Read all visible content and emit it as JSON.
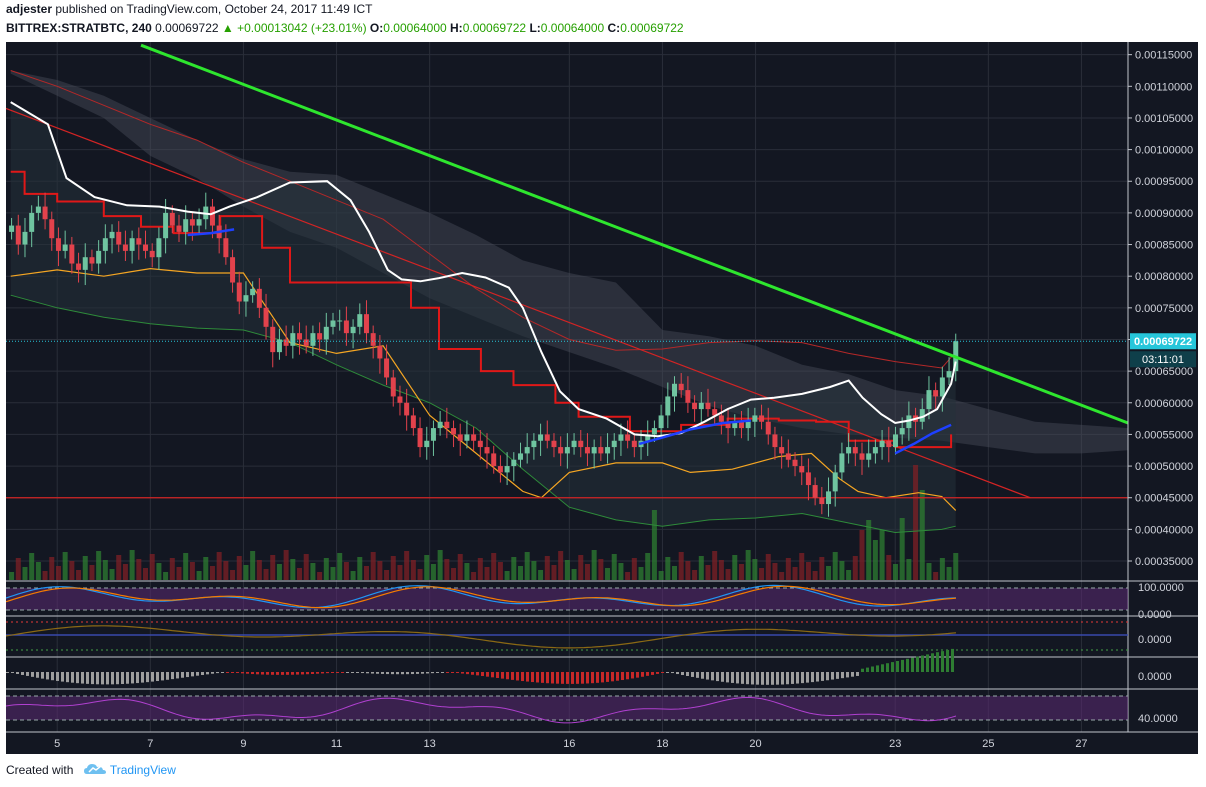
{
  "header": {
    "author": "adjester",
    "published_text": "published on TradingView.com, October 24, 2017 11:49 ICT",
    "symbol": "BITTREX:STRATBTC, 240",
    "last": "0.00069722",
    "change": "+0.00013042 (+23.01%)",
    "o_label": "O:",
    "o_value": "0.00064000",
    "h_label": "H:",
    "h_value": "0.00069722",
    "l_label": "L:",
    "l_value": "0.00064000",
    "c_label": "C:",
    "c_value": "0.00069722"
  },
  "footer": {
    "created_with": "Created with",
    "brand": "TradingView"
  },
  "colors": {
    "background": "#131722",
    "up": "#6fc4a0",
    "down": "#e2424c",
    "trend_green": "#2ee62e",
    "trend_red": "#d32424",
    "white_ma": "#ffffff",
    "blue_ma": "#1e40ff",
    "bollinger": "#f5a623",
    "price_tag": "#26c6da"
  },
  "chart_data": {
    "type": "candlestick",
    "symbol": "BITTREX:STRATBTC",
    "interval": "240",
    "price_axis_ticks": [
      "0.00115000",
      "0.00110000",
      "0.00105000",
      "0.00100000",
      "0.00095000",
      "0.00090000",
      "0.00085000",
      "0.00080000",
      "0.00075000",
      "0.00070000",
      "0.00065000",
      "0.00060000",
      "0.00055000",
      "0.00050000",
      "0.00045000",
      "0.00040000",
      "0.00035000"
    ],
    "price_range": [
      0.00032,
      0.00117
    ],
    "last_price_label": "0.00069722",
    "countdown_label": "03:11:01",
    "x_axis_ticks": [
      {
        "label": "5",
        "day": 5
      },
      {
        "label": "7",
        "day": 7
      },
      {
        "label": "9",
        "day": 9
      },
      {
        "label": "11",
        "day": 11
      },
      {
        "label": "13",
        "day": 13
      },
      {
        "label": "16",
        "day": 16
      },
      {
        "label": "18",
        "day": 18
      },
      {
        "label": "20",
        "day": 20
      },
      {
        "label": "23",
        "day": 23
      },
      {
        "label": "25",
        "day": 25
      },
      {
        "label": "27",
        "day": 27
      }
    ],
    "day_range": [
      3.9,
      28.0
    ],
    "candles_close": [
      0.00088,
      0.00085,
      0.00087,
      0.0009,
      0.00091,
      0.00089,
      0.00086,
      0.00084,
      0.00085,
      0.00082,
      0.00081,
      0.00083,
      0.00082,
      0.00084,
      0.00086,
      0.00087,
      0.00085,
      0.00084,
      0.00086,
      0.00085,
      0.00084,
      0.00083,
      0.00086,
      0.0009,
      0.00088,
      0.00087,
      0.00089,
      0.00088,
      0.00089,
      0.00091,
      0.00088,
      0.00086,
      0.00083,
      0.00079,
      0.00076,
      0.00077,
      0.00078,
      0.00075,
      0.00072,
      0.00068,
      0.0007,
      0.00069,
      0.00071,
      0.0007,
      0.00069,
      0.00071,
      0.0007,
      0.00072,
      0.00073,
      0.00073,
      0.00071,
      0.00072,
      0.00074,
      0.00071,
      0.00069,
      0.00067,
      0.00064,
      0.00061,
      0.0006,
      0.00058,
      0.00056,
      0.00053,
      0.00054,
      0.00056,
      0.00057,
      0.00056,
      0.00055,
      0.00054,
      0.00055,
      0.00054,
      0.00053,
      0.00052,
      0.0005,
      0.00049,
      0.0005,
      0.00051,
      0.00052,
      0.00053,
      0.00054,
      0.00055,
      0.00054,
      0.00053,
      0.00052,
      0.00053,
      0.00054,
      0.00053,
      0.00052,
      0.00053,
      0.00052,
      0.00053,
      0.00054,
      0.00055,
      0.00054,
      0.00053,
      0.00054,
      0.00055,
      0.00056,
      0.00058,
      0.00061,
      0.00063,
      0.00062,
      0.0006,
      0.00059,
      0.0006,
      0.00059,
      0.00058,
      0.00057,
      0.00056,
      0.00057,
      0.00056,
      0.00057,
      0.00058,
      0.00057,
      0.00055,
      0.00053,
      0.00052,
      0.00051,
      0.0005,
      0.00049,
      0.00047,
      0.00045,
      0.00044,
      0.00046,
      0.00049,
      0.00052,
      0.00053,
      0.00052,
      0.00051,
      0.00052,
      0.00053,
      0.00054,
      0.00053,
      0.00055,
      0.00056,
      0.00058,
      0.00057,
      0.00059,
      0.00062,
      0.00061,
      0.00064,
      0.00065,
      0.00069722
    ],
    "trendline_green": {
      "from": {
        "day": 6.8,
        "price": 0.001165
      },
      "to": {
        "day": 28.0,
        "price": 0.000568
      }
    },
    "trendline_red": {
      "from": {
        "day": 3.9,
        "price": 0.001065
      },
      "to": {
        "day": 25.9,
        "price": 0.00045
      }
    },
    "support_line": {
      "price": 0.00045
    },
    "white_ma": [
      [
        4.0,
        0.001075
      ],
      [
        4.8,
        0.00104
      ],
      [
        5.2,
        0.000955
      ],
      [
        5.8,
        0.000925
      ],
      [
        6.5,
        0.000912
      ],
      [
        7.2,
        0.00091
      ],
      [
        7.8,
        0.000902
      ],
      [
        8.3,
        0.000898
      ],
      [
        8.7,
        0.00091
      ],
      [
        9.3,
        0.000925
      ],
      [
        10.0,
        0.000948
      ],
      [
        10.8,
        0.00095
      ],
      [
        11.3,
        0.00092
      ],
      [
        11.7,
        0.00087
      ],
      [
        12.1,
        0.00081
      ],
      [
        12.4,
        0.000795
      ],
      [
        12.8,
        0.000792
      ],
      [
        13.2,
        0.000797
      ],
      [
        13.7,
        0.000805
      ],
      [
        14.2,
        0.000798
      ],
      [
        14.7,
        0.000782
      ],
      [
        15.0,
        0.00075
      ],
      [
        15.4,
        0.00068
      ],
      [
        15.8,
        0.000618
      ],
      [
        16.2,
        0.00059
      ],
      [
        16.8,
        0.000575
      ],
      [
        17.4,
        0.00055
      ],
      [
        17.9,
        0.000547
      ],
      [
        18.4,
        0.000552
      ],
      [
        18.9,
        0.00057
      ],
      [
        19.4,
        0.00059
      ],
      [
        19.9,
        0.000605
      ],
      [
        20.4,
        0.000608
      ],
      [
        21.0,
        0.000614
      ],
      [
        21.6,
        0.000625
      ],
      [
        22.0,
        0.000635
      ],
      [
        22.3,
        0.000608
      ],
      [
        22.7,
        0.000582
      ],
      [
        23.0,
        0.000568
      ],
      [
        23.3,
        0.000572
      ],
      [
        23.6,
        0.000578
      ],
      [
        23.9,
        0.00059
      ],
      [
        24.2,
        0.00063
      ],
      [
        24.3,
        0.000665
      ]
    ],
    "blue_ma": [
      [
        7.8,
        0.000865
      ],
      [
        8.3,
        0.000868
      ],
      [
        8.8,
        0.000874
      ],
      [
        17.5,
        0.000535
      ],
      [
        18.0,
        0.000545
      ],
      [
        18.6,
        0.000558
      ],
      [
        19.3,
        0.000568
      ],
      [
        19.9,
        0.000572
      ],
      [
        23.0,
        0.00052
      ],
      [
        23.4,
        0.000535
      ],
      [
        23.8,
        0.000552
      ],
      [
        24.2,
        0.000565
      ]
    ],
    "red_step": [
      [
        4.0,
        0.000965
      ],
      [
        4.3,
        0.00093
      ],
      [
        5.0,
        0.000918
      ],
      [
        6.0,
        0.000895
      ],
      [
        6.8,
        0.000878
      ],
      [
        7.5,
        0.000868
      ],
      [
        8.5,
        0.000895
      ],
      [
        9.4,
        0.000845
      ],
      [
        10.0,
        0.00079
      ],
      [
        11.8,
        0.00079
      ],
      [
        12.6,
        0.00075
      ],
      [
        13.2,
        0.000685
      ],
      [
        14.1,
        0.00065
      ],
      [
        14.8,
        0.000628
      ],
      [
        15.7,
        0.0006
      ],
      [
        16.2,
        0.000578
      ],
      [
        17.3,
        0.000555
      ],
      [
        18.4,
        0.000565
      ],
      [
        19.4,
        0.000575
      ],
      [
        20.5,
        0.000572
      ],
      [
        21.3,
        0.00057
      ],
      [
        22.0,
        0.00054
      ],
      [
        23.0,
        0.00053
      ],
      [
        23.8,
        0.00053
      ],
      [
        24.2,
        0.00055
      ]
    ],
    "boll_upper": [
      [
        4.0,
        0.001125
      ],
      [
        5.0,
        0.0011
      ],
      [
        6.0,
        0.00107
      ],
      [
        7.0,
        0.00104
      ],
      [
        8.0,
        0.001015
      ],
      [
        9.0,
        0.00098
      ],
      [
        10.0,
        0.00095
      ],
      [
        11.0,
        0.00092
      ],
      [
        12.0,
        0.00089
      ],
      [
        13.0,
        0.000835
      ],
      [
        14.0,
        0.00078
      ],
      [
        15.0,
        0.000735
      ],
      [
        16.0,
        0.0007
      ],
      [
        17.0,
        0.000683
      ],
      [
        18.0,
        0.000685
      ],
      [
        19.0,
        0.000695
      ],
      [
        20.0,
        0.000698
      ],
      [
        21.0,
        0.000695
      ],
      [
        22.0,
        0.000678
      ],
      [
        23.0,
        0.000665
      ],
      [
        24.0,
        0.000655
      ],
      [
        24.3,
        0.00068
      ]
    ],
    "boll_lower": [
      [
        4.0,
        0.0008
      ],
      [
        5.0,
        0.00081
      ],
      [
        6.0,
        0.0008
      ],
      [
        7.0,
        0.000812
      ],
      [
        8.0,
        0.000805
      ],
      [
        9.0,
        0.000805
      ],
      [
        10.0,
        0.000695
      ],
      [
        11.0,
        0.000678
      ],
      [
        12.0,
        0.00069
      ],
      [
        13.0,
        0.00058
      ],
      [
        14.0,
        0.00052
      ],
      [
        15.0,
        0.00046
      ],
      [
        15.4,
        0.00045
      ],
      [
        16.0,
        0.00049
      ],
      [
        17.0,
        0.000505
      ],
      [
        18.0,
        0.000505
      ],
      [
        18.6,
        0.00049
      ],
      [
        19.5,
        0.000495
      ],
      [
        20.5,
        0.000515
      ],
      [
        21.2,
        0.00052
      ],
      [
        21.8,
        0.00048
      ],
      [
        22.2,
        0.00046
      ],
      [
        22.8,
        0.00045
      ],
      [
        23.5,
        0.000458
      ],
      [
        24.0,
        0.000452
      ],
      [
        24.3,
        0.00043
      ]
    ],
    "green_lower": [
      [
        4.0,
        0.00077
      ],
      [
        5.0,
        0.00075
      ],
      [
        6.0,
        0.000735
      ],
      [
        7.0,
        0.000725
      ],
      [
        8.0,
        0.000718
      ],
      [
        9.0,
        0.000715
      ],
      [
        10.0,
        0.000695
      ],
      [
        11.0,
        0.00066
      ],
      [
        12.0,
        0.000628
      ],
      [
        13.0,
        0.0006
      ],
      [
        14.0,
        0.00056
      ],
      [
        15.0,
        0.000495
      ],
      [
        16.0,
        0.000435
      ],
      [
        17.0,
        0.000415
      ],
      [
        18.0,
        0.000405
      ],
      [
        19.0,
        0.000415
      ],
      [
        20.0,
        0.000418
      ],
      [
        21.0,
        0.000425
      ],
      [
        22.0,
        0.00041
      ],
      [
        23.0,
        0.000395
      ],
      [
        24.0,
        0.0004
      ],
      [
        24.3,
        0.000405
      ]
    ],
    "cloud_top": [
      [
        4.0,
        0.001125
      ],
      [
        5.0,
        0.00111
      ],
      [
        6.0,
        0.001085
      ],
      [
        7.0,
        0.00105
      ],
      [
        8.0,
        0.001015
      ],
      [
        9.0,
        0.000985
      ],
      [
        10.0,
        0.000965
      ],
      [
        11.0,
        0.00096
      ],
      [
        12.0,
        0.00093
      ],
      [
        13.0,
        0.0009
      ],
      [
        14.0,
        0.000865
      ],
      [
        15.0,
        0.000825
      ],
      [
        16.0,
        0.000805
      ],
      [
        17.0,
        0.00079
      ],
      [
        18.0,
        0.000715
      ],
      [
        19.0,
        0.000705
      ],
      [
        20.0,
        0.00069
      ],
      [
        21.0,
        0.00066
      ],
      [
        22.0,
        0.000645
      ],
      [
        23.0,
        0.00062
      ],
      [
        24.0,
        0.00061
      ],
      [
        25.0,
        0.00059
      ],
      [
        26.0,
        0.00057
      ],
      [
        27.0,
        0.000565
      ],
      [
        28.0,
        0.00056
      ]
    ],
    "cloud_bottom": [
      [
        4.0,
        0.00112
      ],
      [
        5.0,
        0.001085
      ],
      [
        6.0,
        0.00105
      ],
      [
        7.0,
        0.00099
      ],
      [
        8.0,
        0.000955
      ],
      [
        9.0,
        0.00091
      ],
      [
        10.0,
        0.00087
      ],
      [
        11.0,
        0.000845
      ],
      [
        12.0,
        0.000805
      ],
      [
        13.0,
        0.000765
      ],
      [
        14.0,
        0.000735
      ],
      [
        15.0,
        0.000705
      ],
      [
        16.0,
        0.00068
      ],
      [
        17.0,
        0.000655
      ],
      [
        18.0,
        0.000625
      ],
      [
        19.0,
        0.000595
      ],
      [
        20.0,
        0.000575
      ],
      [
        21.0,
        0.00056
      ],
      [
        22.0,
        0.00055
      ],
      [
        23.0,
        0.000545
      ],
      [
        24.0,
        0.00054
      ],
      [
        25.0,
        0.00053
      ],
      [
        26.0,
        0.00052
      ],
      [
        27.0,
        0.00052
      ],
      [
        28.0,
        0.000525
      ]
    ],
    "stoch_axis": [
      "100.0000",
      "0.0000"
    ],
    "macd_axis": [
      "0.0000"
    ],
    "momentum_axis": [
      "0.0000"
    ],
    "rsi_axis": [
      "40.0000"
    ]
  }
}
